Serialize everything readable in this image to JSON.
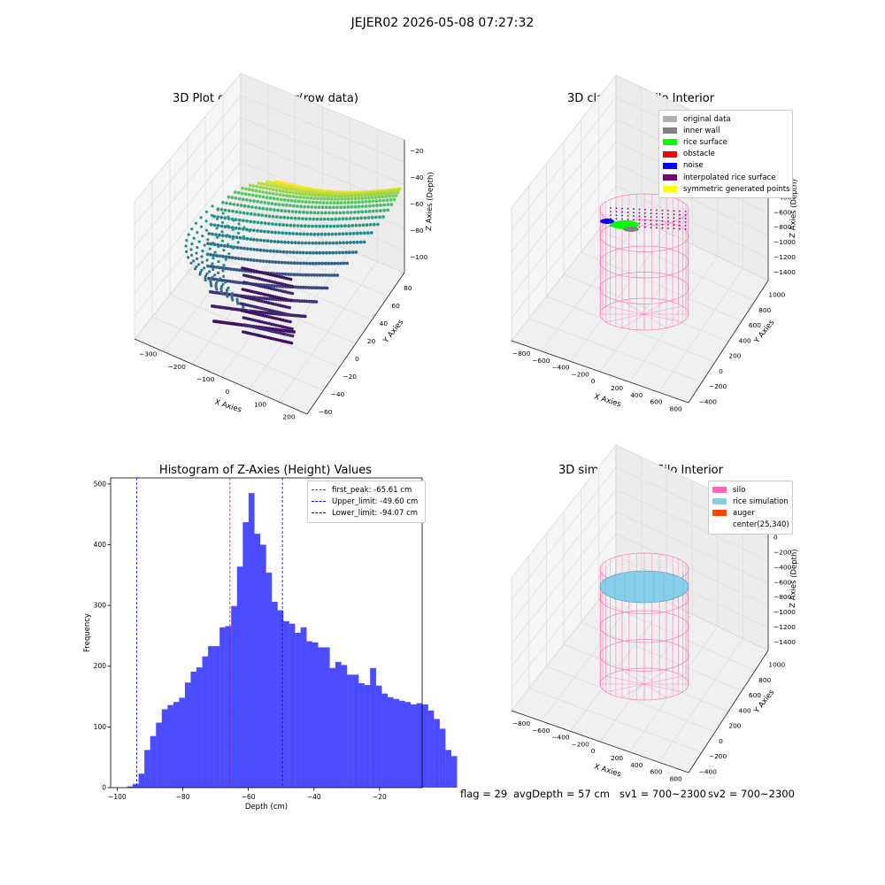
{
  "figure": {
    "suptitle": "JEJER02 2026-05-08 07:27:32"
  },
  "panels": {
    "raw": {
      "title": "3D Plot of Silo Interior(row data)",
      "xlabel": "X Axies",
      "ylabel": "Y Axies",
      "zlabel": "Z Axies (Depth)",
      "xticks": [
        "−300",
        "−200",
        "−100",
        "0",
        "100",
        "200"
      ],
      "yticks": [
        "−60",
        "−40",
        "−20",
        "0",
        "20",
        "40",
        "60",
        "80"
      ],
      "zticks": [
        "−20",
        "−40",
        "−60",
        "−80",
        "−100"
      ],
      "colormap": [
        "#440154",
        "#3b528b",
        "#21918c",
        "#5ec962",
        "#fde725"
      ]
    },
    "classify": {
      "title": "3D classify of Silo Interior",
      "xlabel": "X Axies",
      "ylabel": "Y Axies",
      "zlabel": "Z Axies (Depth)",
      "xticks": [
        "−800",
        "−600",
        "−400",
        "−200",
        "0",
        "200",
        "400",
        "600",
        "800"
      ],
      "yticks": [
        "−400",
        "−200",
        "0",
        "200",
        "400",
        "600",
        "800",
        "1000"
      ],
      "zticks": [
        "200",
        "0",
        "−200",
        "−400",
        "−600",
        "−800",
        "−1000",
        "−1200",
        "−1400"
      ],
      "legend": [
        {
          "label": "original data",
          "color": "#b0b0b0"
        },
        {
          "label": "inner wall",
          "color": "#808080"
        },
        {
          "label": "rice surface",
          "color": "#00ff00"
        },
        {
          "label": "obstacle",
          "color": "#ff0000"
        },
        {
          "label": "noise",
          "color": "#0000ff"
        },
        {
          "label": "interpolated rice surface",
          "color": "#800080"
        },
        {
          "label": "symmetric generated points",
          "color": "#ffff00"
        }
      ],
      "silo_color": "#ff69b4"
    },
    "simulation": {
      "title": "3D simulation of Silo Interior",
      "xlabel": "X Axies",
      "ylabel": "Y Axies",
      "zlabel": "Z Axies (Depth)",
      "xticks": [
        "−800",
        "−600",
        "−400",
        "−200",
        "0",
        "200",
        "400",
        "600",
        "800"
      ],
      "yticks": [
        "−400",
        "−200",
        "0",
        "200",
        "400",
        "600",
        "800",
        "1000"
      ],
      "zticks": [
        "200",
        "0",
        "−200",
        "−400",
        "−600",
        "−800",
        "−1000",
        "−1200",
        "−1400"
      ],
      "legend": [
        {
          "label": "silo",
          "color": "#ff69b4"
        },
        {
          "label": "rice simulation",
          "color": "#87ceeb"
        },
        {
          "label": "auger",
          "color": "#ff4500"
        },
        {
          "label": "center(25,340)",
          "color": ""
        }
      ]
    },
    "status": {
      "flag": "flag = 29",
      "avg_depth": "avgDepth = 57 cm",
      "sv1": "sv1 = 700~2300",
      "sv2": "sv2 = 700~2300"
    }
  },
  "chart_data": {
    "type": "bar",
    "title": "Histogram of Z-Axies (Height) Values",
    "xlabel": "Depth (cm)",
    "ylabel": "Frequency",
    "xlim": [
      -102,
      -7
    ],
    "ylim": [
      0,
      510
    ],
    "xticks": [
      -100,
      -80,
      -60,
      -40,
      -20
    ],
    "xtick_labels": [
      "−100",
      "−80",
      "−60",
      "−40",
      "−20"
    ],
    "yticks": [
      0,
      100,
      200,
      300,
      400,
      500
    ],
    "bar_color": "#4c4cff",
    "bin_start": -97,
    "bin_width": 1.765,
    "values": [
      2,
      6,
      23,
      62,
      85,
      107,
      129,
      136,
      141,
      148,
      173,
      191,
      198,
      216,
      233,
      233,
      264,
      266,
      299,
      364,
      437,
      485,
      418,
      400,
      354,
      306,
      292,
      274,
      270,
      255,
      264,
      241,
      239,
      231,
      231,
      197,
      207,
      202,
      186,
      186,
      172,
      169,
      197,
      168,
      155,
      149,
      146,
      143,
      141,
      137,
      139,
      137,
      127,
      113,
      97,
      62,
      52
    ],
    "lines": [
      {
        "name": "first_peak: -65.61 cm",
        "x": -65.61,
        "color": "#ff0000"
      },
      {
        "name": "Upper_limit: -49.60 cm",
        "x": -49.6,
        "color": "#0000ff"
      },
      {
        "name": "Lower_limit: -94.07 cm",
        "x": -94.07,
        "color": "#0000ff"
      }
    ]
  }
}
